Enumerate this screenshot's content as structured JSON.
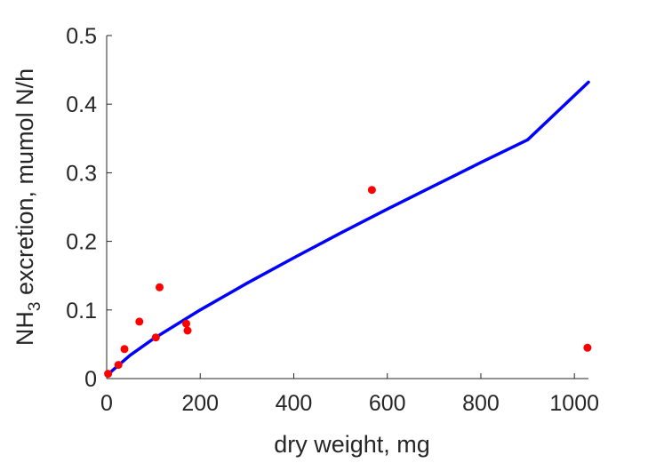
{
  "chart_data": {
    "type": "scatter",
    "title": "",
    "xlabel": "dry weight, mg",
    "ylabel": {
      "base": "NH",
      "subscript": "3",
      "rest": " excretion, mumol N/h"
    },
    "xlim": [
      0,
      1030
    ],
    "ylim": [
      0,
      0.5
    ],
    "xticks": [
      0,
      200,
      400,
      600,
      800,
      1000
    ],
    "yticks": [
      0,
      0.1,
      0.2,
      0.3,
      0.4,
      0.5
    ],
    "grid": false,
    "series": [
      {
        "kind": "points",
        "color": "#ff0000",
        "x": [
          3,
          25,
          38,
          70,
          105,
          113,
          170,
          173,
          567,
          1028
        ],
        "y": [
          0.007,
          0.02,
          0.043,
          0.083,
          0.06,
          0.133,
          0.08,
          0.07,
          0.275,
          0.045
        ]
      },
      {
        "kind": "line",
        "color": "#0000ff",
        "x": [
          2,
          10,
          50,
          100,
          200,
          300,
          400,
          500,
          600,
          700,
          800,
          900,
          1030
        ],
        "y": [
          0.004,
          0.0105,
          0.034,
          0.058,
          0.1,
          0.139,
          0.176,
          0.212,
          0.247,
          0.281,
          0.315,
          0.348,
          0.432
        ]
      }
    ]
  }
}
